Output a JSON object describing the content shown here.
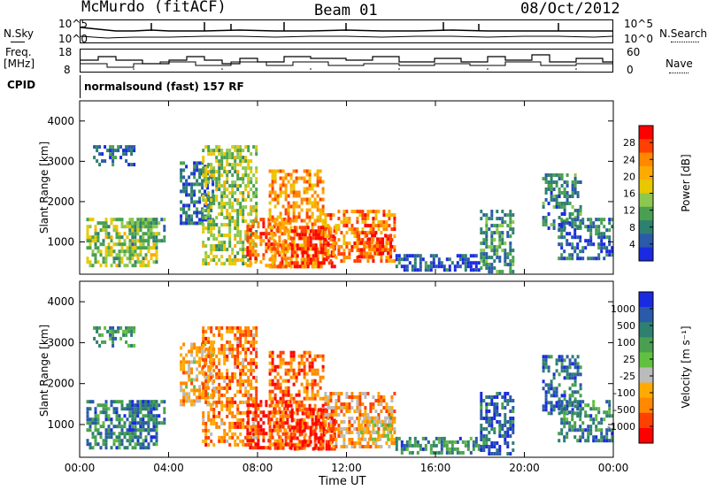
{
  "header": {
    "station": "McMurdo (fitACF)",
    "beam": "Beam 01",
    "date": "08/Oct/2012"
  },
  "top_panels": {
    "nsky_label": "N.Sky",
    "nsearch_label": "N.Search",
    "n_ticks_left": [
      "10^5",
      "10^0"
    ],
    "n_ticks_right": [
      "10^5",
      "10^0"
    ],
    "freq_label": "Freq.",
    "freq_unit": "[MHz]",
    "freq_ticks": [
      "18",
      "8"
    ],
    "nave_label": "Nave",
    "nave_ticks": [
      "60",
      "0"
    ],
    "cpid_label": "CPID",
    "cpid_value": "normalsound (fast) 157 RF"
  },
  "chart_data": [
    {
      "type": "heatmap",
      "title": "",
      "ylabel": "Slant Range [km]",
      "xlabel": "",
      "x_ticks": [
        "00:00",
        "04:00",
        "08:00",
        "12:00",
        "16:00",
        "20:00",
        "00:00"
      ],
      "xlim_hours": [
        0,
        24
      ],
      "y_ticks": [
        1000,
        2000,
        3000,
        4000
      ],
      "ylim": [
        200,
        4500
      ],
      "colorbar": {
        "label": "Power [dB]",
        "ticks": [
          "28",
          "24",
          "20",
          "16",
          "12",
          "8",
          "4"
        ],
        "colors": [
          "#ff0000",
          "#ff4000",
          "#ff8800",
          "#ffaa00",
          "#e8c800",
          "#8cc850",
          "#4aa050",
          "#2e8070",
          "#2a5aa8",
          "#1a2ae0"
        ]
      },
      "regions": [
        {
          "x0": 0.3,
          "x1": 3.5,
          "y0": 400,
          "y1": 1600,
          "level": 0.45
        },
        {
          "x0": 0.6,
          "x1": 2.5,
          "y0": 2900,
          "y1": 3400,
          "level": 0.2
        },
        {
          "x0": 2.2,
          "x1": 3.8,
          "y0": 900,
          "y1": 1600,
          "level": 0.35
        },
        {
          "x0": 4.5,
          "x1": 6.0,
          "y0": 1500,
          "y1": 3000,
          "level": 0.2
        },
        {
          "x0": 5.5,
          "x1": 8.0,
          "y0": 500,
          "y1": 3400,
          "level": 0.45
        },
        {
          "x0": 7.5,
          "x1": 9.5,
          "y0": 400,
          "y1": 1600,
          "level": 0.8
        },
        {
          "x0": 8.5,
          "x1": 11.0,
          "y0": 400,
          "y1": 2800,
          "level": 0.7
        },
        {
          "x0": 9.5,
          "x1": 11.5,
          "y0": 400,
          "y1": 1400,
          "level": 0.95
        },
        {
          "x0": 11.0,
          "x1": 14.2,
          "y0": 500,
          "y1": 1800,
          "level": 0.75
        },
        {
          "x0": 12.5,
          "x1": 14.0,
          "y0": 600,
          "y1": 1200,
          "level": 0.9
        },
        {
          "x0": 14.2,
          "x1": 18.0,
          "y0": 300,
          "y1": 700,
          "level": 0.15
        },
        {
          "x0": 18.0,
          "x1": 19.5,
          "y0": 300,
          "y1": 1800,
          "level": 0.3
        },
        {
          "x0": 20.8,
          "x1": 22.5,
          "y0": 1300,
          "y1": 2700,
          "level": 0.25
        },
        {
          "x0": 21.5,
          "x1": 24.0,
          "y0": 600,
          "y1": 1600,
          "level": 0.2
        }
      ]
    },
    {
      "type": "heatmap",
      "title": "",
      "ylabel": "Slant Range [km]",
      "xlabel": "Time UT",
      "x_ticks": [
        "00:00",
        "04:00",
        "08:00",
        "12:00",
        "16:00",
        "20:00",
        "00:00"
      ],
      "xlim_hours": [
        0,
        24
      ],
      "y_ticks": [
        1000,
        2000,
        3000,
        4000
      ],
      "ylim": [
        200,
        4500
      ],
      "colorbar": {
        "label": "Velocity [m s⁻¹]",
        "ticks": [
          "1000",
          "500",
          "100",
          "25",
          "-25",
          "-100",
          "-500",
          "-1000"
        ],
        "colors": [
          "#1a2ae0",
          "#2a5aa8",
          "#2e8070",
          "#4aa050",
          "#60c040",
          "#bbbbbb",
          "#ffaa00",
          "#ff8800",
          "#ff4000",
          "#ff0000"
        ]
      },
      "regions": [
        {
          "x0": 0.3,
          "x1": 3.5,
          "y0": 400,
          "y1": 1600,
          "level": 0.75
        },
        {
          "x0": 0.6,
          "x1": 2.5,
          "y0": 2900,
          "y1": 3400,
          "level": 0.7
        },
        {
          "x0": 2.2,
          "x1": 3.8,
          "y0": 900,
          "y1": 1600,
          "level": 0.8
        },
        {
          "x0": 4.5,
          "x1": 6.0,
          "y0": 1500,
          "y1": 3000,
          "level": 0.35
        },
        {
          "x0": 5.5,
          "x1": 8.0,
          "y0": 500,
          "y1": 3400,
          "level": 0.25
        },
        {
          "x0": 7.5,
          "x1": 9.5,
          "y0": 400,
          "y1": 1600,
          "level": 0.1
        },
        {
          "x0": 8.5,
          "x1": 11.0,
          "y0": 400,
          "y1": 2800,
          "level": 0.2
        },
        {
          "x0": 9.5,
          "x1": 11.5,
          "y0": 400,
          "y1": 1400,
          "level": 0.05
        },
        {
          "x0": 11.0,
          "x1": 14.2,
          "y0": 500,
          "y1": 1800,
          "level": 0.3
        },
        {
          "x0": 12.5,
          "x1": 14.0,
          "y0": 600,
          "y1": 1200,
          "level": 0.45
        },
        {
          "x0": 14.2,
          "x1": 18.0,
          "y0": 300,
          "y1": 700,
          "level": 0.75
        },
        {
          "x0": 18.0,
          "x1": 19.5,
          "y0": 300,
          "y1": 1800,
          "level": 0.85
        },
        {
          "x0": 20.8,
          "x1": 22.5,
          "y0": 1300,
          "y1": 2700,
          "level": 0.8
        },
        {
          "x0": 21.5,
          "x1": 24.0,
          "y0": 600,
          "y1": 1600,
          "level": 0.75
        }
      ]
    }
  ]
}
